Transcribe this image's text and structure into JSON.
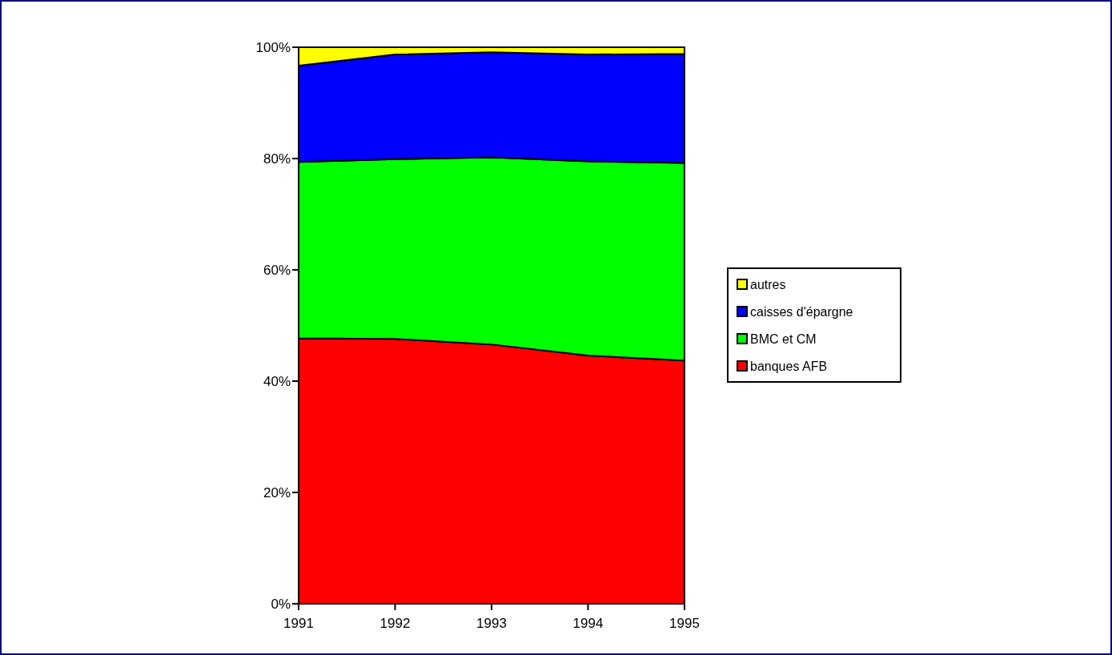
{
  "chart_data": {
    "type": "area",
    "stacked": true,
    "categories": [
      "1991",
      "1992",
      "1993",
      "1994",
      "1995"
    ],
    "series": [
      {
        "name": "banques AFB",
        "color": "#ff0000",
        "values": [
          47.7,
          47.6,
          46.6,
          44.6,
          43.7
        ]
      },
      {
        "name": "BMC et CM",
        "color": "#00ff00",
        "values": [
          31.7,
          32.3,
          33.6,
          34.9,
          35.5
        ]
      },
      {
        "name": "caisses d'épargne",
        "color": "#0000ff",
        "values": [
          17.3,
          18.8,
          18.9,
          19.2,
          19.6
        ]
      },
      {
        "name": "autres",
        "color": "#ffff00",
        "values": [
          3.3,
          1.3,
          0.9,
          1.3,
          1.2
        ]
      }
    ],
    "ylim": [
      0,
      100
    ],
    "yticks": [
      {
        "value": 0,
        "label": "0%"
      },
      {
        "value": 20,
        "label": "20%"
      },
      {
        "value": 40,
        "label": "40%"
      },
      {
        "value": 60,
        "label": "60%"
      },
      {
        "value": 80,
        "label": "80%"
      },
      {
        "value": 100,
        "label": "100%"
      }
    ],
    "legend": "right"
  }
}
